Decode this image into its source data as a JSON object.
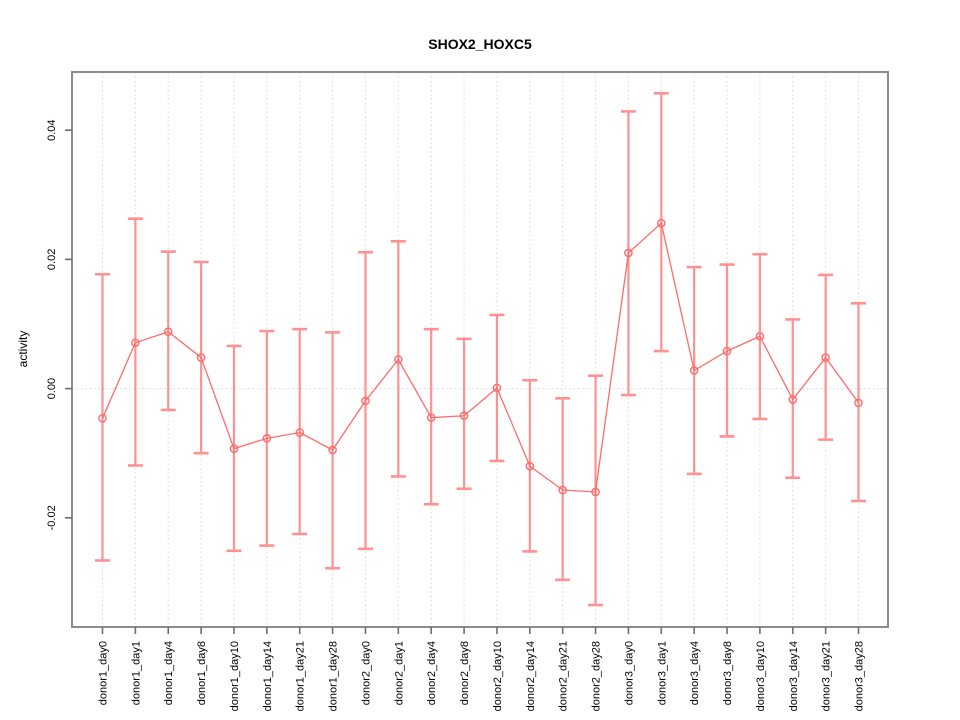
{
  "figure": {
    "background": "#ffffff"
  },
  "chart_data": {
    "type": "line",
    "title": "SHOX2_HOXC5",
    "xlabel": "",
    "ylabel": "activity",
    "legend": "none",
    "marker": "open-circle",
    "grid": {
      "vertical_dotted_per_category": true,
      "horizontal_dotted_at_zero": true,
      "other_horizontal_gridlines": false
    },
    "ylim": [
      -0.0369,
      0.049
    ],
    "y_ticks": [
      {
        "value": -0.02,
        "label": "-0.02"
      },
      {
        "value": 0.0,
        "label": "0.00"
      },
      {
        "value": 0.02,
        "label": "0.02"
      },
      {
        "value": 0.04,
        "label": "0.04"
      }
    ],
    "categories": [
      "donor1_day0",
      "donor1_day1",
      "donor1_day4",
      "donor1_day8",
      "donor1_day10",
      "donor1_day14",
      "donor1_day21",
      "donor1_day28",
      "donor2_day0",
      "donor2_day1",
      "donor2_day4",
      "donor2_day8",
      "donor2_day10",
      "donor2_day14",
      "donor2_day21",
      "donor2_day28",
      "donor3_day0",
      "donor3_day1",
      "donor3_day4",
      "donor3_day8",
      "donor3_day10",
      "donor3_day14",
      "donor3_day21",
      "donor3_day28"
    ],
    "series": [
      {
        "name": "SHOX2_HOXC5 activity",
        "values": [
          -0.0046,
          0.0071,
          0.0088,
          0.0048,
          -0.0093,
          -0.0077,
          -0.0068,
          -0.0095,
          -0.0019,
          0.0045,
          -0.0045,
          -0.0042,
          0.0001,
          -0.012,
          -0.0157,
          -0.016,
          0.021,
          0.0256,
          0.0028,
          0.0058,
          0.0081,
          -0.0017,
          0.0048,
          -0.0022
        ],
        "err_high": [
          0.0177,
          0.0263,
          0.0212,
          0.0196,
          0.0066,
          0.0089,
          0.0092,
          0.0087,
          0.0211,
          0.0228,
          0.0092,
          0.0077,
          0.0114,
          0.0013,
          -0.0015,
          0.002,
          0.0429,
          0.0457,
          0.0188,
          0.0192,
          0.0208,
          0.0107,
          0.0176,
          0.0132
        ],
        "err_low": [
          -0.0266,
          -0.0119,
          -0.0033,
          -0.01,
          -0.0251,
          -0.0243,
          -0.0225,
          -0.0278,
          -0.0248,
          -0.0136,
          -0.0179,
          -0.0155,
          -0.0112,
          -0.0252,
          -0.0296,
          -0.0335,
          -0.001,
          0.0058,
          -0.0132,
          -0.0074,
          -0.0047,
          -0.0138,
          -0.0079,
          -0.0174
        ]
      }
    ],
    "colors": {
      "series": "#ff6b6b",
      "error_bars": "#ff9191",
      "grid": "#d8d8d8",
      "axis_box": "#8c8c8c",
      "tick": "#6e6e6e",
      "text": "#000000"
    }
  }
}
